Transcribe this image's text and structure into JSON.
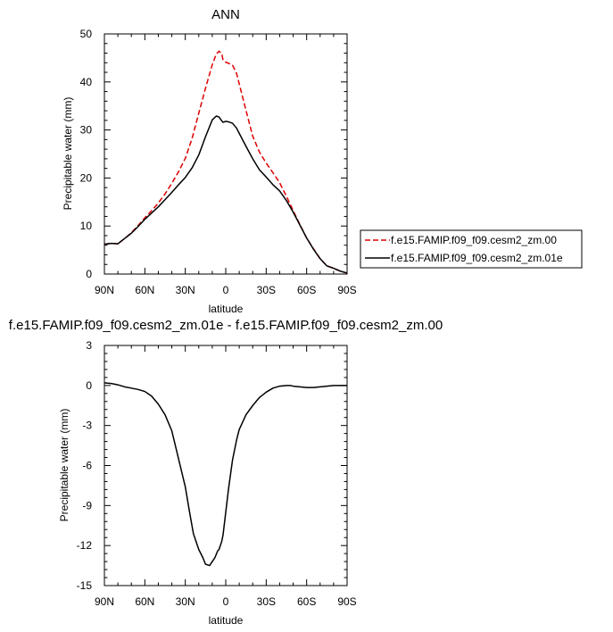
{
  "chart_data": [
    {
      "type": "line",
      "title": "ANN",
      "xlabel": "latitude",
      "ylabel": "Precipitable water (mm)",
      "xlim": [
        90,
        -90
      ],
      "ylim": [
        0,
        50
      ],
      "x_ticks": [
        90,
        60,
        30,
        0,
        -30,
        -60,
        -90
      ],
      "x_tick_labels": [
        "90N",
        "60N",
        "30N",
        "0",
        "30S",
        "60S",
        "90S"
      ],
      "y_ticks": [
        0,
        10,
        20,
        30,
        40,
        50
      ],
      "y_tick_labels": [
        "0",
        "10",
        "20",
        "30",
        "40",
        "50"
      ],
      "legend_position": "right",
      "series": [
        {
          "name": "f.e15.FAMIP.f09_f09.cesm2_zm.00",
          "color": "#dd0000",
          "dash": "dashed",
          "x": [
            90,
            85,
            80,
            75,
            70,
            65,
            60,
            55,
            50,
            45,
            40,
            35,
            30,
            25,
            20,
            15,
            10,
            7,
            5,
            3,
            2,
            0,
            -2,
            -5,
            -8,
            -10,
            -15,
            -20,
            -25,
            -30,
            -35,
            -40,
            -45,
            -50,
            -55,
            -60,
            -65,
            -70,
            -75,
            -80,
            -85,
            -90
          ],
          "y": [
            6.2,
            6.4,
            6.3,
            7.4,
            8.6,
            10.1,
            11.7,
            13.2,
            14.8,
            16.7,
            18.9,
            21.3,
            24.1,
            28.2,
            33.5,
            38.7,
            43.6,
            45.8,
            46.4,
            45.9,
            44.6,
            44.1,
            43.9,
            43.5,
            41.8,
            39.6,
            34.1,
            28.7,
            25.4,
            23.1,
            21.1,
            19.0,
            16.2,
            13.2,
            10.3,
            7.5,
            5.3,
            3.2,
            1.7,
            1.2,
            0.6,
            0.2
          ]
        },
        {
          "name": "f.e15.FAMIP.f09_f09.cesm2_zm.01e",
          "color": "#000000",
          "dash": "solid",
          "x": [
            90,
            85,
            80,
            75,
            70,
            65,
            60,
            55,
            50,
            45,
            40,
            35,
            30,
            25,
            20,
            15,
            10,
            7,
            5,
            3,
            2,
            0,
            -2,
            -5,
            -8,
            -10,
            -15,
            -20,
            -25,
            -30,
            -35,
            -40,
            -45,
            -50,
            -55,
            -60,
            -65,
            -70,
            -75,
            -80,
            -85,
            -90
          ],
          "y": [
            6.2,
            6.4,
            6.3,
            7.4,
            8.5,
            9.9,
            11.4,
            12.7,
            14.0,
            15.5,
            17.0,
            18.6,
            20.1,
            22.1,
            24.8,
            28.6,
            32.1,
            32.9,
            32.7,
            31.9,
            31.6,
            31.8,
            31.7,
            31.4,
            30.4,
            29.3,
            26.6,
            24.0,
            21.7,
            20.2,
            18.6,
            17.3,
            15.3,
            12.9,
            10.2,
            7.5,
            5.2,
            3.2,
            1.7,
            1.2,
            0.6,
            0.2
          ]
        }
      ]
    },
    {
      "type": "line",
      "title": "f.e15.FAMIP.f09_f09.cesm2_zm.01e - f.e15.FAMIP.f09_f09.cesm2_zm.00",
      "xlabel": "latitude",
      "ylabel": "Precipitable water (mm)",
      "xlim": [
        90,
        -90
      ],
      "ylim": [
        -15,
        3
      ],
      "x_ticks": [
        90,
        60,
        30,
        0,
        -30,
        -60,
        -90
      ],
      "x_tick_labels": [
        "90N",
        "60N",
        "30N",
        "0",
        "30S",
        "60S",
        "90S"
      ],
      "y_ticks": [
        3,
        0,
        -3,
        -6,
        -9,
        -12,
        -15
      ],
      "y_tick_labels": [
        "3",
        "0",
        "-3",
        "-6",
        "-9",
        "-12",
        "-15"
      ],
      "series": [
        {
          "color": "#000000",
          "dash": "solid",
          "x": [
            90,
            85,
            80,
            75,
            70,
            65,
            60,
            55,
            50,
            45,
            40,
            35,
            30,
            27,
            24,
            20,
            17,
            15,
            12,
            10,
            8,
            6,
            5,
            4,
            3,
            2,
            0,
            -2,
            -5,
            -8,
            -10,
            -15,
            -20,
            -25,
            -30,
            -35,
            -40,
            -45,
            -48,
            -50,
            -55,
            -60,
            -65,
            -70,
            -75,
            -80,
            -85,
            -90
          ],
          "y": [
            0.2,
            0.15,
            0.05,
            -0.1,
            -0.2,
            -0.3,
            -0.45,
            -0.8,
            -1.4,
            -2.2,
            -3.4,
            -5.5,
            -7.6,
            -9.4,
            -11.1,
            -12.3,
            -12.9,
            -13.4,
            -13.5,
            -13.2,
            -12.9,
            -12.4,
            -12.3,
            -12.0,
            -11.7,
            -11.2,
            -9.5,
            -7.8,
            -5.6,
            -4.1,
            -3.3,
            -2.2,
            -1.5,
            -0.9,
            -0.5,
            -0.2,
            -0.05,
            0.0,
            0.0,
            -0.05,
            -0.1,
            -0.15,
            -0.15,
            -0.1,
            -0.05,
            0.0,
            0.0,
            0.0
          ]
        }
      ]
    }
  ]
}
